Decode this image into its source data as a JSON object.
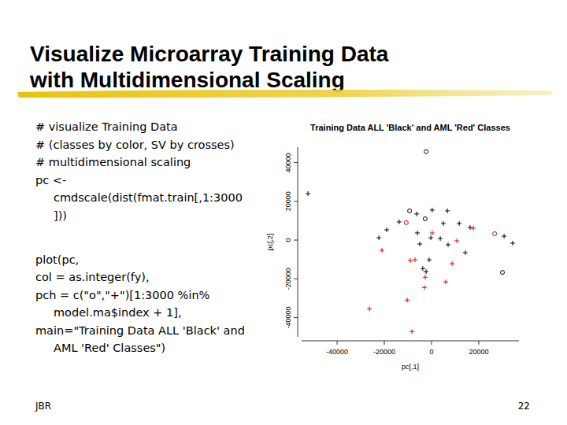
{
  "slide": {
    "title": [
      "Visualize Microarray Training Data",
      "with Multidimensional Scaling"
    ],
    "code": [
      [
        [
          "# visualize Training Data"
        ],
        [
          "# (classes by color, SV by crosses)"
        ],
        [
          "# multidimensional scaling"
        ],
        [
          "pc <-",
          "cmdscale(dist(fmat.train[,1:3000",
          "]))"
        ]
      ],
      [
        [
          "plot(pc,"
        ],
        [
          "col = as.integer(fy),"
        ],
        [
          "pch = c(\"o\",\"+\")[1:3000 %in%",
          "model.ma$index + 1],"
        ],
        [
          "main=\"Training Data ALL 'Black' and",
          "AML 'Red' Classes\")"
        ]
      ]
    ],
    "footer": "JBR",
    "page": "22"
  },
  "chart_data": {
    "type": "scatter",
    "title": "Training Data ALL 'Black' and AML 'Red' Classes",
    "x_label": "pc[,1]",
    "y_label": "pc[,2]",
    "xlim": [
      -55000,
      37000
    ],
    "ylim": [
      -50000,
      48000
    ],
    "xticks": [
      -40000,
      -20000,
      0,
      20000
    ],
    "yticks": [
      -40000,
      -20000,
      0,
      20000,
      40000
    ],
    "grid": false,
    "series": [
      {
        "color": "#000000",
        "marker": "o",
        "x": [
          -2300,
          -9300,
          -2700,
          30000
        ],
        "values": [
          45700,
          15100,
          11000,
          -16700
        ]
      },
      {
        "color": "#000000",
        "marker": "+",
        "x": [
          -52300,
          -6300,
          300,
          6700,
          -13700,
          5000,
          11700,
          16300,
          -19000,
          -6000,
          30700,
          -22300,
          -300,
          3700,
          -5000,
          7000,
          34300,
          14300,
          -1000,
          -3700,
          -2300
        ],
        "values": [
          24000,
          13500,
          15500,
          15100,
          9400,
          8600,
          8600,
          6500,
          5300,
          3700,
          2000,
          1200,
          1200,
          800,
          -2000,
          -2400,
          -1600,
          -6500,
          -10200,
          -14700,
          -16300
        ]
      },
      {
        "color": "#e00000",
        "marker": "o",
        "x": [
          -10700,
          26700
        ],
        "values": [
          9000,
          3300
        ]
      },
      {
        "color": "#e00000",
        "marker": "+",
        "x": [
          17700,
          300,
          10700,
          -21000,
          -9000,
          -7000,
          8700,
          -2700,
          6000,
          -3000,
          -10300,
          -26300,
          -8300
        ],
        "values": [
          6100,
          3700,
          -400,
          -5300,
          -10600,
          -10200,
          -12200,
          -19200,
          -21600,
          -24500,
          -31000,
          -35500,
          -47300
        ]
      }
    ]
  }
}
